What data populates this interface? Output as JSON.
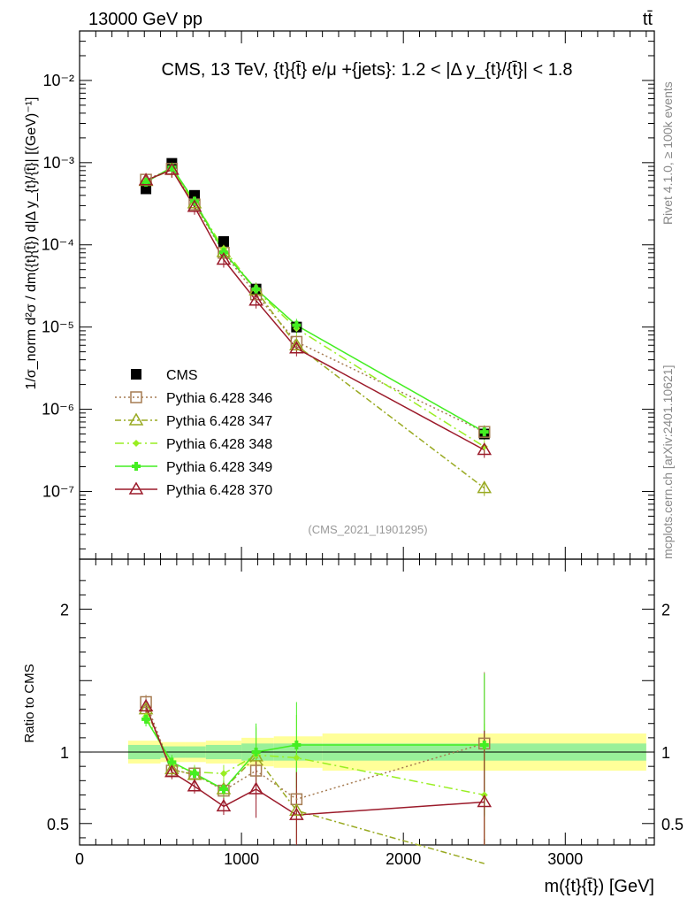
{
  "header": {
    "energy_label": "13000 GeV pp",
    "process_label": "tt̄"
  },
  "side_labels": {
    "rivet": "Rivet 4.1.0, ≥ 100k events",
    "mcplots": "mcplots.cern.ch [arXiv:2401.10621]"
  },
  "chart_data": [
    {
      "type": "line",
      "title": "CMS, 13 TeV, {t}{t̄} e/μ +{jets}: 1.2 < |Δ y_{t}/{t̄}| < 1.8",
      "analysis_id": "(CMS_2021_I1901295)",
      "ylabel": "1/σ_norm d²σ / dm({t}{t̄}) d|Δ y_{t}/{t̄}| [(GeV)⁻¹]",
      "yscale": "log",
      "ylim": [
        1.5e-08,
        0.04
      ],
      "xlim": [
        0,
        3550
      ],
      "y_tick_labels": [
        "10⁻⁷",
        "10⁻⁶",
        "10⁻⁵",
        "10⁻⁴",
        "10⁻³",
        "10⁻²"
      ],
      "legend_position": "lower-left",
      "x": [
        410,
        570,
        710,
        890,
        1090,
        1340,
        2500
      ],
      "series": [
        {
          "name": "CMS",
          "color": "#000000",
          "marker": "square",
          "dash": "",
          "values": [
            0.00048,
            0.00098,
            0.0004,
            0.00011,
            2.9e-05,
            1e-05,
            5e-07
          ]
        },
        {
          "name": "Pythia 6.428 346",
          "color": "#a67c52",
          "marker": "open-square",
          "dash": "2,3",
          "values": [
            0.00062,
            0.00084,
            0.00031,
            8e-05,
            2.5e-05,
            6.6e-06,
            5.3e-07
          ]
        },
        {
          "name": "Pythia 6.428 347",
          "color": "#99aa22",
          "marker": "open-triangle",
          "dash": "7,3,2,3",
          "values": [
            0.0006,
            0.00082,
            0.00032,
            8.2e-05,
            2.8e-05,
            6e-06,
            1.1e-07
          ]
        },
        {
          "name": "Pythia 6.428 348",
          "color": "#99ee22",
          "marker": "diamond",
          "dash": "10,4,2,4",
          "values": [
            0.00059,
            0.00085,
            0.00033,
            9e-05,
            2.8e-05,
            9.6e-06,
            3.5e-07
          ]
        },
        {
          "name": "Pythia 6.428 349",
          "color": "#44ee22",
          "marker": "cross",
          "dash": "",
          "values": [
            0.00058,
            0.00088,
            0.00034,
            8.1e-05,
            2.9e-05,
            1.05e-05,
            5.3e-07
          ]
        },
        {
          "name": "Pythia 6.428 370",
          "color": "#9b1a2a",
          "marker": "open-triangle",
          "dash": "",
          "values": [
            0.00061,
            0.00082,
            0.00029,
            6.6e-05,
            2.1e-05,
            5.5e-06,
            3.2e-07
          ]
        }
      ]
    },
    {
      "type": "line",
      "title": "",
      "ylabel": "Ratio to CMS",
      "xlabel": "m({t}{t̄}) [GeV]",
      "ylim": [
        0.35,
        2.35
      ],
      "xlim": [
        0,
        3550
      ],
      "y_ticks": [
        0.5,
        1,
        2
      ],
      "y_tick_labels": [
        "0.5",
        "1",
        "2"
      ],
      "x_ticks": [
        0,
        1000,
        2000,
        3000
      ],
      "x_tick_labels": [
        "0",
        "1000",
        "2000",
        "3000"
      ],
      "bands": {
        "bins": [
          [
            300,
            500
          ],
          [
            500,
            650
          ],
          [
            650,
            780
          ],
          [
            780,
            1000
          ],
          [
            1000,
            1200
          ],
          [
            1200,
            1500
          ],
          [
            1500,
            3500
          ]
        ],
        "inner": [
          0.05,
          0.04,
          0.04,
          0.05,
          0.06,
          0.06,
          0.06
        ],
        "outer": [
          0.08,
          0.07,
          0.07,
          0.08,
          0.1,
          0.11,
          0.13
        ],
        "inner_color": "#99f099",
        "outer_color": "#ffff99"
      },
      "x": [
        410,
        570,
        710,
        890,
        1090,
        1340,
        2500
      ],
      "series": [
        {
          "name": "Pythia 6.428 346",
          "values": [
            1.35,
            0.87,
            0.85,
            0.73,
            0.87,
            0.67,
            1.06
          ]
        },
        {
          "name": "Pythia 6.428 347",
          "values": [
            1.3,
            0.88,
            0.84,
            0.74,
            0.97,
            0.59,
            0.22
          ]
        },
        {
          "name": "Pythia 6.428 348",
          "values": [
            1.25,
            0.91,
            0.86,
            0.85,
            0.98,
            0.96,
            0.7
          ]
        },
        {
          "name": "Pythia 6.428 349",
          "values": [
            1.23,
            0.93,
            0.85,
            0.74,
            1.0,
            1.05,
            1.05
          ]
        },
        {
          "name": "Pythia 6.428 370",
          "values": [
            1.32,
            0.86,
            0.76,
            0.62,
            0.74,
            0.56,
            0.65
          ]
        }
      ]
    }
  ]
}
